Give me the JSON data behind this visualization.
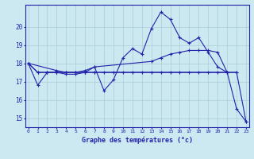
{
  "xlabel": "Graphe des températures (°c)",
  "bg_color": "#cce8f0",
  "grid_color": "#aaccda",
  "line_color": "#2222aa",
  "ylim": [
    14.5,
    21.2
  ],
  "xlim": [
    -0.3,
    23.3
  ],
  "yticks": [
    15,
    16,
    17,
    18,
    19,
    20
  ],
  "xticks": [
    0,
    1,
    2,
    3,
    4,
    5,
    6,
    7,
    8,
    9,
    10,
    11,
    12,
    13,
    14,
    15,
    16,
    17,
    18,
    19,
    20,
    21,
    22,
    23
  ],
  "curve1_x": [
    0,
    1,
    2,
    3,
    4,
    5,
    6,
    7,
    8,
    9,
    10,
    11,
    12,
    13,
    14,
    15,
    16,
    17,
    18,
    19,
    20,
    21,
    22,
    23
  ],
  "curve1_y": [
    18.0,
    16.8,
    17.5,
    17.5,
    17.4,
    17.4,
    17.5,
    17.8,
    16.5,
    17.1,
    18.3,
    18.8,
    18.5,
    19.9,
    20.8,
    20.4,
    19.4,
    19.1,
    19.4,
    18.6,
    17.8,
    17.5,
    15.5,
    14.8
  ],
  "curve2_x": [
    0,
    3,
    4,
    5,
    6,
    7,
    13,
    14,
    15,
    16,
    17,
    18,
    19,
    20,
    21
  ],
  "curve2_y": [
    18.0,
    17.6,
    17.5,
    17.5,
    17.6,
    17.8,
    18.1,
    18.3,
    18.5,
    18.6,
    18.7,
    18.7,
    18.7,
    18.6,
    17.5
  ],
  "curve3_x": [
    0,
    1,
    2,
    3,
    4,
    5,
    6,
    7,
    21,
    22
  ],
  "curve3_y": [
    18.0,
    17.5,
    17.5,
    17.5,
    17.5,
    17.5,
    17.5,
    17.5,
    17.5,
    17.5
  ],
  "curve4_x": [
    0,
    1,
    2,
    3,
    4,
    5,
    6,
    7,
    8,
    9,
    10,
    11,
    12,
    13,
    14,
    15,
    16,
    17,
    18,
    19,
    20,
    21,
    22,
    23
  ],
  "curve4_y": [
    18.0,
    17.5,
    17.5,
    17.5,
    17.5,
    17.5,
    17.5,
    17.5,
    17.5,
    17.5,
    17.5,
    17.5,
    17.5,
    17.5,
    17.5,
    17.5,
    17.5,
    17.5,
    17.5,
    17.5,
    17.5,
    17.5,
    17.5,
    14.8
  ]
}
